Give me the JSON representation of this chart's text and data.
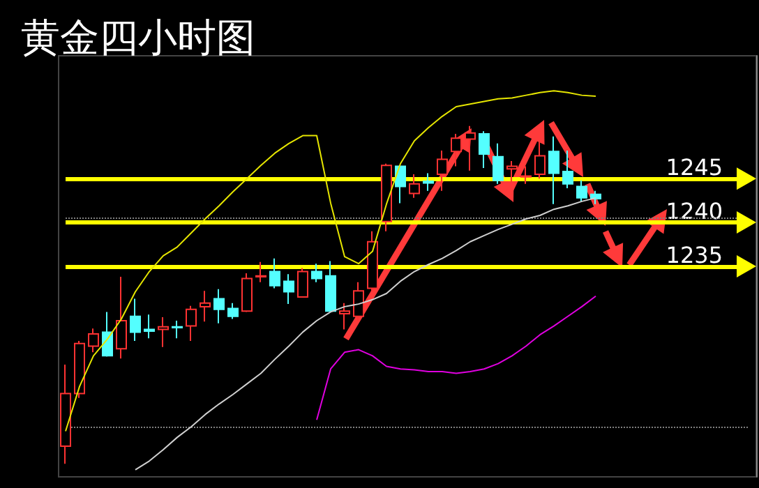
{
  "chart_data": {
    "type": "candlestick",
    "title": "黄金四小时图",
    "categories": [
      null,
      null,
      null,
      null,
      null,
      null,
      null,
      null,
      null,
      null,
      null,
      null,
      null,
      null,
      null,
      null,
      null,
      null,
      null,
      null,
      null,
      null,
      null,
      null,
      null,
      null,
      null,
      null,
      null,
      null,
      null,
      null,
      null,
      null,
      null,
      null,
      null,
      null,
      null
    ],
    "ohlc": [
      [
        1214.5,
        1223.8,
        1212.5,
        1220.5
      ],
      [
        1220.5,
        1226.5,
        1220,
        1226.2
      ],
      [
        1225.9,
        1227.9,
        1225.2,
        1227.3
      ],
      [
        1227.5,
        1229.8,
        1224.7,
        1224.8
      ],
      [
        1225.6,
        1233.8,
        1224.5,
        1228.8
      ],
      [
        1229.3,
        1231.3,
        1226.5,
        1227.5
      ],
      [
        1227.8,
        1229.5,
        1226.8,
        1227.6
      ],
      [
        1227.8,
        1229.2,
        1225.8,
        1228.1
      ],
      [
        1228.1,
        1228.8,
        1226.8,
        1228
      ],
      [
        1228.2,
        1230.5,
        1226.5,
        1230.1
      ],
      [
        1230.4,
        1232.2,
        1228.7,
        1230.8
      ],
      [
        1231.3,
        1232.4,
        1228.5,
        1230.1
      ],
      [
        1230.2,
        1230.8,
        1229,
        1229.3
      ],
      [
        1229.9,
        1234.2,
        1229.8,
        1233.6
      ],
      [
        1233.8,
        1235.5,
        1233.2,
        1233.9
      ],
      [
        1234.4,
        1235.9,
        1232.5,
        1232.8
      ],
      [
        1233.3,
        1234.1,
        1230.7,
        1232.1
      ],
      [
        1231.5,
        1234.8,
        1231.5,
        1234.4
      ],
      [
        1234.4,
        1235.3,
        1233.2,
        1233.6
      ],
      [
        1233.9,
        1235.6,
        1229.9,
        1229.9
      ],
      [
        1229.6,
        1230.8,
        1227.8,
        1229.9
      ],
      [
        1229.3,
        1233.2,
        1228.8,
        1232.2
      ],
      [
        1232.5,
        1239,
        1232.1,
        1237.8
      ],
      [
        1240.1,
        1246.7,
        1239,
        1246.5
      ],
      [
        1246.4,
        1246.5,
        1242.2,
        1244.1
      ],
      [
        1243.3,
        1245.5,
        1242.8,
        1244.4
      ],
      [
        1244.7,
        1245.6,
        1243.6,
        1244.5
      ],
      [
        1245.5,
        1248.2,
        1243.6,
        1247.2
      ],
      [
        1248.1,
        1250.1,
        1246.4,
        1249.6
      ],
      [
        1249.5,
        1251,
        1245.9,
        1250.2
      ],
      [
        1250.1,
        1250.4,
        1246.2,
        1247.8
      ],
      [
        1247.5,
        1249,
        1244.4,
        1244.8
      ],
      [
        1246.1,
        1247,
        1244.7,
        1246.4
      ],
      [
        1245.2,
        1246.4,
        1244.4,
        1245.3
      ],
      [
        1245.5,
        1249.2,
        1245,
        1247.6
      ],
      [
        1248.1,
        1249.8,
        1242.1,
        1245.6
      ],
      [
        1245.8,
        1248.2,
        1243.9,
        1244.4
      ],
      [
        1244.1,
        1244.8,
        1242.4,
        1242.8
      ],
      [
        1243.2,
        1243.6,
        1242.1,
        1242.7
      ]
    ],
    "series": [
      {
        "type": "line",
        "color": "#e6e600",
        "values": [
          1216.2,
          1221.3,
          1224.8,
          1226.7,
          1229,
          1232.1,
          1234.4,
          1236.2,
          1237.2,
          1238.8,
          1240.4,
          1241.9,
          1243.5,
          1245,
          1246.5,
          1247.9,
          1249,
          1249.9,
          1249.9,
          1242.2,
          1236.1,
          1235.3,
          1236.7,
          1242.1,
          1246.7,
          1249.3,
          1250.8,
          1252.1,
          1253.2,
          1253.5,
          1253.8,
          1254.1,
          1254.2,
          1254.5,
          1254.8,
          1255,
          1254.8,
          1254.5,
          1254.4
        ]
      },
      {
        "type": "line",
        "color": "#d0d0d0",
        "values": [
          null,
          null,
          null,
          null,
          null,
          1211.8,
          1212.8,
          1214.1,
          1215.5,
          1216.7,
          1218.1,
          1219.3,
          1220.4,
          1221.6,
          1222.8,
          1224.4,
          1225.9,
          1227.5,
          1228.8,
          1229.8,
          1230.4,
          1230.7,
          1231.2,
          1231.9,
          1233.3,
          1234.4,
          1235.2,
          1235.9,
          1236.8,
          1237.8,
          1238.5,
          1239.2,
          1239.8,
          1240.4,
          1240.8,
          1241.5,
          1241.9,
          1242.4,
          1242.8
        ]
      },
      {
        "type": "line",
        "color": "#e000e0",
        "values": [
          null,
          null,
          null,
          null,
          null,
          null,
          null,
          null,
          null,
          null,
          null,
          null,
          null,
          null,
          null,
          null,
          null,
          null,
          1217.5,
          1223.3,
          1225.2,
          1225.5,
          1224.8,
          1223.6,
          1223.3,
          1223.2,
          1223,
          1223,
          1222.8,
          1223,
          1223.3,
          1223.9,
          1224.8,
          1225.9,
          1227.2,
          1228.2,
          1229.3,
          1230.4,
          1231.6
        ]
      }
    ],
    "ref_lines": [
      {
        "axis": "y",
        "value": 1245,
        "color": "#ffff00",
        "line_style": "solid"
      },
      {
        "axis": "y",
        "value": 1240,
        "color": "#ffff00",
        "line_style": "solid"
      },
      {
        "axis": "y",
        "value": 1235,
        "color": "#ffff00",
        "line_style": "solid"
      },
      {
        "axis": "y",
        "value": 1240.5,
        "color": "#808080",
        "line_style": "dotted"
      },
      {
        "axis": "y",
        "value": 1216.7,
        "color": "#808080",
        "line_style": "dotted"
      }
    ],
    "ylim": [
      1211,
      1259
    ],
    "yticks": [
      1235,
      1240,
      1245
    ],
    "grid": false,
    "marker": "none"
  }
}
